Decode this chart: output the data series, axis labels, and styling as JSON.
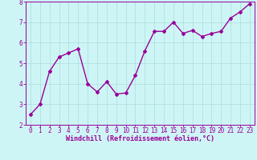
{
  "x": [
    0,
    1,
    2,
    3,
    4,
    5,
    6,
    7,
    8,
    9,
    10,
    11,
    12,
    13,
    14,
    15,
    16,
    17,
    18,
    19,
    20,
    21,
    22,
    23
  ],
  "y": [
    2.5,
    3.0,
    4.6,
    5.3,
    5.5,
    5.7,
    4.0,
    3.6,
    4.1,
    3.5,
    3.55,
    4.4,
    5.6,
    6.55,
    6.55,
    7.0,
    6.45,
    6.6,
    6.3,
    6.45,
    6.55,
    7.2,
    7.5,
    7.9
  ],
  "line_color": "#990099",
  "marker": "D",
  "marker_size": 2,
  "linewidth": 1.0,
  "bg_color": "#cef5f5",
  "grid_color": "#aadddd",
  "xlabel": "Windchill (Refroidissement éolien,°C)",
  "xlabel_color": "#990099",
  "xlabel_fontsize": 6,
  "tick_color": "#990099",
  "tick_fontsize": 5.5,
  "ylim": [
    2,
    8
  ],
  "xlim": [
    -0.5,
    23.5
  ],
  "yticks": [
    2,
    3,
    4,
    5,
    6,
    7,
    8
  ],
  "xticks": [
    0,
    1,
    2,
    3,
    4,
    5,
    6,
    7,
    8,
    9,
    10,
    11,
    12,
    13,
    14,
    15,
    16,
    17,
    18,
    19,
    20,
    21,
    22,
    23
  ]
}
